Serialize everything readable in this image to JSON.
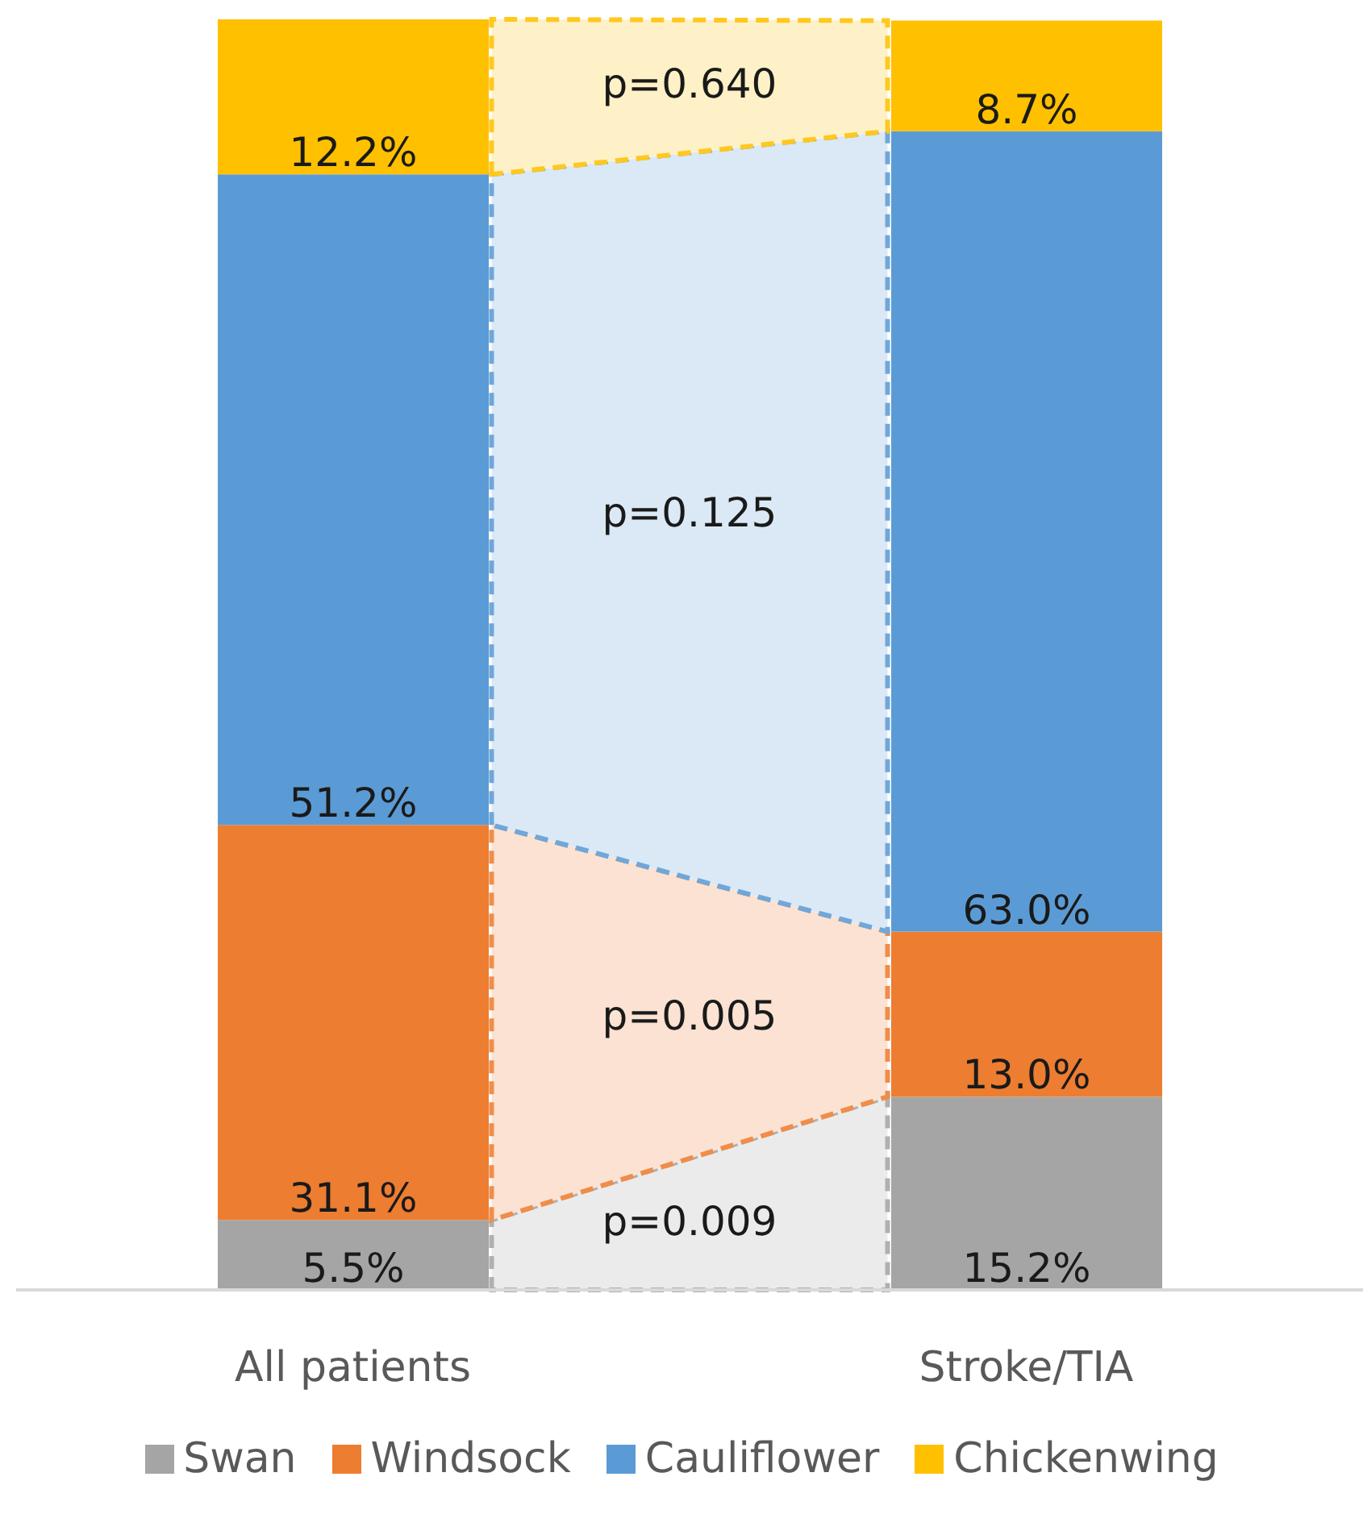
{
  "chart_data": {
    "type": "bar",
    "stacked": true,
    "categories": [
      "All patients",
      "Stroke/TIA"
    ],
    "series": [
      {
        "name": "Swan",
        "color": "#a5a5a5",
        "values": [
          5.5,
          15.2
        ],
        "value_labels": [
          "5.5%",
          "15.2%"
        ]
      },
      {
        "name": "Windsock",
        "color": "#ed7d31",
        "values": [
          31.1,
          13.0
        ],
        "value_labels": [
          "31.1%",
          "13.0%"
        ]
      },
      {
        "name": "Cauliflower",
        "color": "#5b9bd5",
        "values": [
          51.2,
          63.0
        ],
        "value_labels": [
          "51.2%",
          "63.0%"
        ]
      },
      {
        "name": "Chickenwing",
        "color": "#ffc000",
        "values": [
          12.2,
          8.7
        ],
        "value_labels": [
          "12.2%",
          "8.7%"
        ]
      }
    ],
    "annotations": [
      "p=0.640",
      "p=0.125",
      "p=0.005",
      "p=0.009"
    ],
    "legend": "bottom",
    "grid": false
  }
}
